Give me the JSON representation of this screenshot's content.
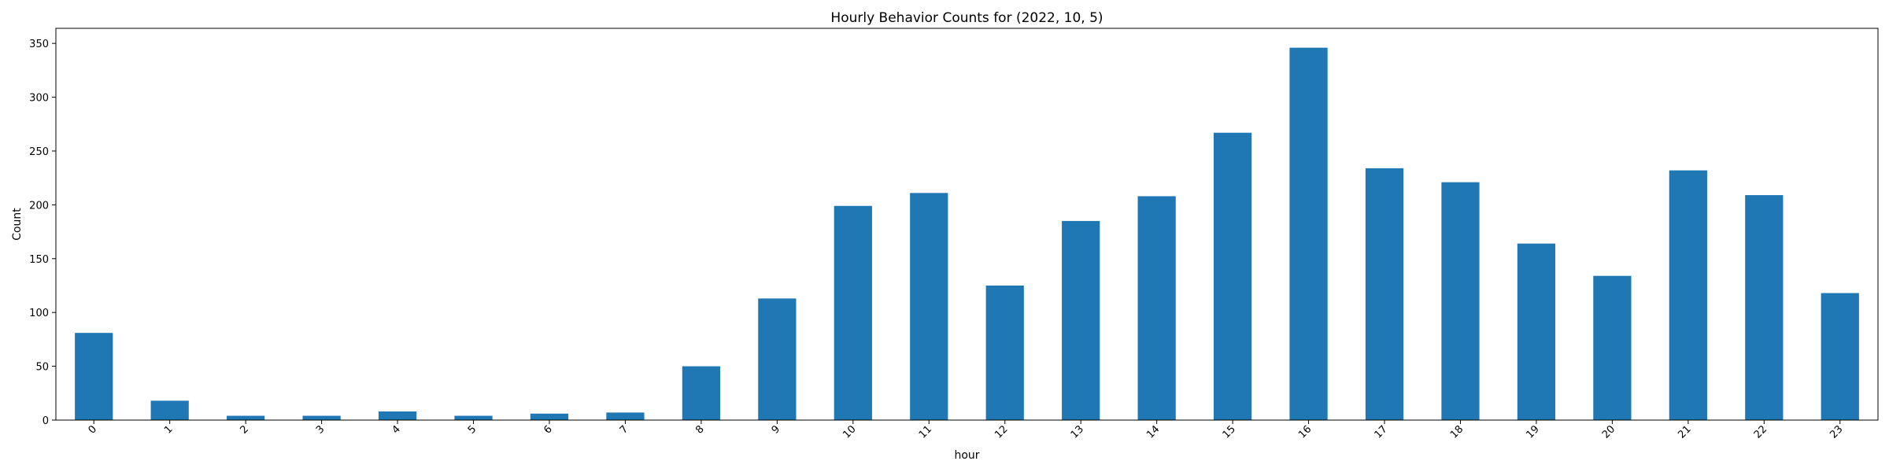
{
  "chart_data": {
    "type": "bar",
    "title": "Hourly Behavior Counts for (2022, 10, 5)",
    "xlabel": "hour",
    "ylabel": "Count",
    "categories": [
      "0",
      "1",
      "2",
      "3",
      "4",
      "5",
      "6",
      "7",
      "8",
      "9",
      "10",
      "11",
      "12",
      "13",
      "14",
      "15",
      "16",
      "17",
      "18",
      "19",
      "20",
      "21",
      "22",
      "23"
    ],
    "values": [
      81,
      18,
      4,
      4,
      8,
      4,
      6,
      7,
      50,
      113,
      199,
      211,
      125,
      185,
      208,
      267,
      346,
      234,
      221,
      164,
      134,
      232,
      209,
      118
    ],
    "ylim": [
      0,
      364
    ],
    "yticks": [
      0,
      50,
      100,
      150,
      200,
      250,
      300,
      350
    ],
    "bar_color": "#1f77b4",
    "grid": false,
    "legend": "none"
  }
}
